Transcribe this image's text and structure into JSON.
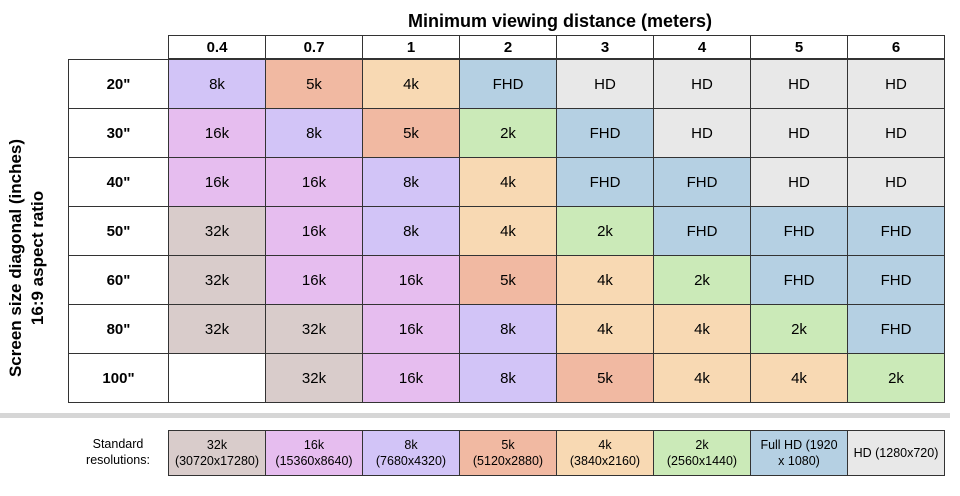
{
  "chart_data": {
    "type": "table",
    "title": "Minimum viewing distance (meters)",
    "ylabel_line1": "Screen size diagonal (inches)",
    "ylabel_line2": "16:9 aspect ratio",
    "columns": [
      "0.4",
      "0.7",
      "1",
      "2",
      "3",
      "4",
      "5",
      "6"
    ],
    "rows": [
      {
        "label": "20\"",
        "cells": [
          "8k",
          "5k",
          "4k",
          "FHD",
          "HD",
          "HD",
          "HD",
          "HD"
        ]
      },
      {
        "label": "30\"",
        "cells": [
          "16k",
          "8k",
          "5k",
          "2k",
          "FHD",
          "HD",
          "HD",
          "HD"
        ]
      },
      {
        "label": "40\"",
        "cells": [
          "16k",
          "16k",
          "8k",
          "4k",
          "FHD",
          "FHD",
          "HD",
          "HD"
        ]
      },
      {
        "label": "50\"",
        "cells": [
          "32k",
          "16k",
          "8k",
          "4k",
          "2k",
          "FHD",
          "FHD",
          "FHD"
        ]
      },
      {
        "label": "60\"",
        "cells": [
          "32k",
          "16k",
          "16k",
          "5k",
          "4k",
          "2k",
          "FHD",
          "FHD"
        ]
      },
      {
        "label": "80\"",
        "cells": [
          "32k",
          "32k",
          "16k",
          "8k",
          "4k",
          "4k",
          "2k",
          "FHD"
        ]
      },
      {
        "label": "100\"",
        "cells": [
          "",
          "32k",
          "16k",
          "8k",
          "5k",
          "4k",
          "4k",
          "2k"
        ]
      }
    ],
    "standard_resolutions_label": "Standard resolutions:",
    "standard_resolutions": [
      {
        "key": "32k",
        "name": "32k",
        "detail": "(30720x17280)"
      },
      {
        "key": "16k",
        "name": "16k",
        "detail": "(15360x8640)"
      },
      {
        "key": "8k",
        "name": "8k",
        "detail": "(7680x4320)"
      },
      {
        "key": "5k",
        "name": "5k",
        "detail": "(5120x2880)"
      },
      {
        "key": "4k",
        "name": "4k",
        "detail": "(3840x2160)"
      },
      {
        "key": "2k",
        "name": "2k",
        "detail": "(2560x1440)"
      },
      {
        "key": "FHD",
        "name": "Full HD (1920",
        "detail": "x 1080)"
      },
      {
        "key": "HD",
        "name": "HD (1280x720)",
        "detail": ""
      }
    ],
    "colors": {
      "32k": "#d9cccb",
      "16k": "#e6bdef",
      "8k": "#d2c4f7",
      "5k": "#f1b9a2",
      "4k": "#f8d9b3",
      "2k": "#cbeab8",
      "FHD": "#b5d0e3",
      "HD": "#e8e8e8",
      "": "#ffffff"
    }
  }
}
